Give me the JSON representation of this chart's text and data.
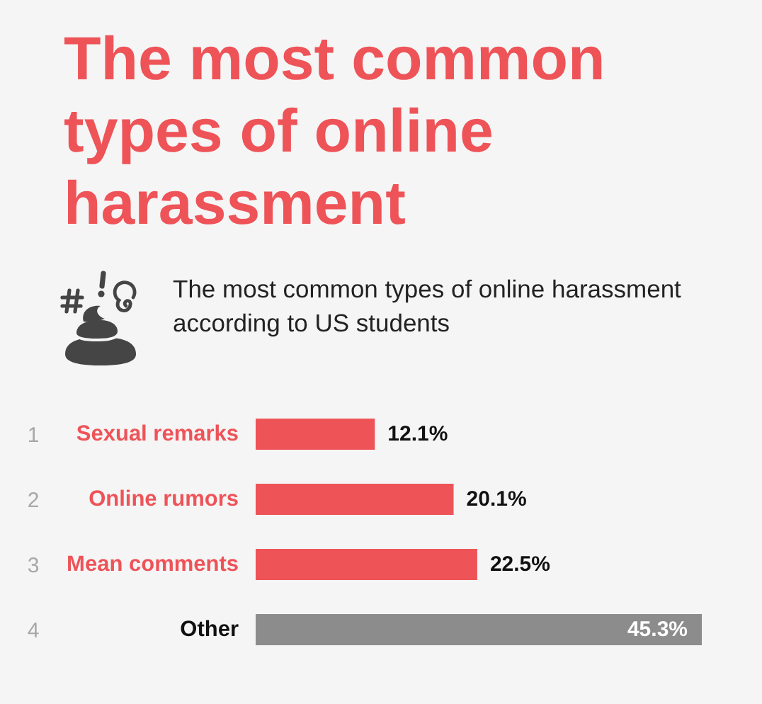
{
  "chart_data": {
    "type": "bar",
    "orientation": "horizontal",
    "title": "The most common types of online harassment",
    "subtitle": "The most common types of online harassment according to US students",
    "categories": [
      "Sexual remarks",
      "Online rumors",
      "Mean comments",
      "Other"
    ],
    "values": [
      12.1,
      20.1,
      22.5,
      45.3
    ],
    "colors": [
      "#ee5358",
      "#ee5358",
      "#ee5358",
      "#8c8c8c"
    ],
    "value_labels": [
      "12.1%",
      "20.1%",
      "22.5%",
      "45.3%"
    ],
    "tick_labels": "y",
    "annotations": [
      "1",
      "2",
      "3",
      "4"
    ]
  }
}
